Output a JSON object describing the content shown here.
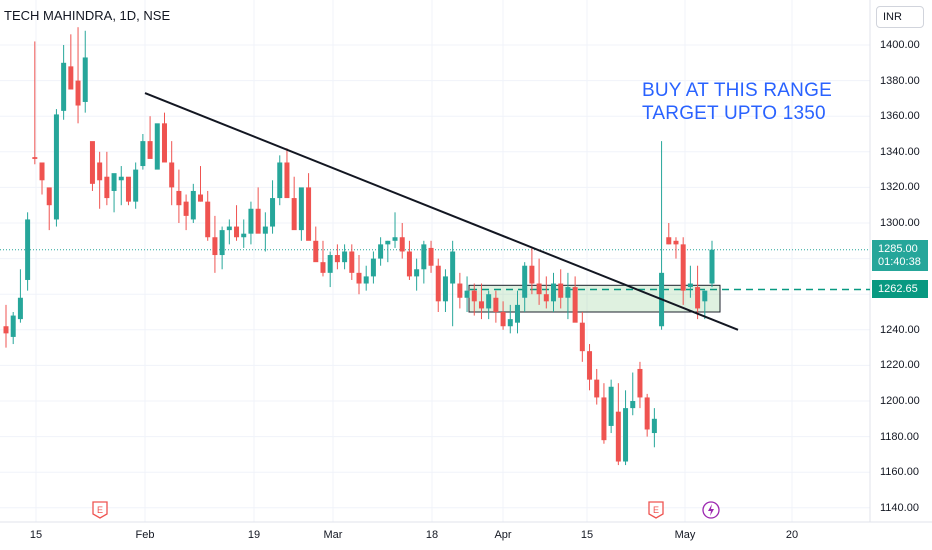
{
  "header": {
    "symbol_title": "TECH MAHINDRA, 1D, NSE",
    "currency": "INR"
  },
  "annotation": {
    "line1": "BUY AT THIS RANGE",
    "line2": "TARGET UPTO 1350"
  },
  "price_axis": {
    "ticks": [
      "1400.00",
      "1380.00",
      "1360.00",
      "1340.00",
      "1320.00",
      "1300.00",
      "1280.00",
      "1260.00",
      "1240.00",
      "1220.00",
      "1200.00",
      "1180.00",
      "1160.00",
      "1140.00"
    ]
  },
  "time_axis": {
    "ticks": [
      "15",
      "Feb",
      "19",
      "Mar",
      "18",
      "Apr",
      "15",
      "May",
      "20"
    ]
  },
  "last_price": {
    "value": "1285.00",
    "countdown": "01:40:38",
    "color": "#26a69a"
  },
  "level_line": {
    "value": "1262.65",
    "color": "#089981"
  },
  "events": {
    "earnings_label": "E",
    "dividend_icon": "lightning-icon"
  },
  "colors": {
    "up": "#26a69a",
    "down": "#ef5350",
    "trendline": "#131722",
    "annotation": "#2962ff",
    "grid": "#f0f3fa"
  },
  "chart_data": {
    "type": "candlestick",
    "title": "TECH MAHINDRA, 1D, NSE",
    "y_range": [
      1130,
      1410
    ],
    "y_unit": "INR",
    "candles_ohlc": [
      [
        1242,
        1254,
        1230,
        1238
      ],
      [
        1236,
        1250,
        1232,
        1248
      ],
      [
        1246,
        1274,
        1244,
        1258
      ],
      [
        1268,
        1306,
        1262,
        1302
      ],
      [
        1337,
        1402,
        1333,
        1336
      ],
      [
        1334,
        1332,
        1316,
        1324
      ],
      [
        1320,
        1316,
        1296,
        1310
      ],
      [
        1302,
        1364,
        1298,
        1361
      ],
      [
        1363,
        1400,
        1358,
        1390
      ],
      [
        1388,
        1406,
        1380,
        1375
      ],
      [
        1380,
        1410,
        1356,
        1366
      ],
      [
        1368,
        1408,
        1362,
        1393
      ],
      [
        1346,
        1342,
        1318,
        1322
      ],
      [
        1334,
        1340,
        1308,
        1324
      ],
      [
        1326,
        1340,
        1310,
        1314
      ],
      [
        1318,
        1326,
        1306,
        1328
      ],
      [
        1324,
        1332,
        1310,
        1326
      ],
      [
        1326,
        1318,
        1310,
        1312
      ],
      [
        1312,
        1334,
        1308,
        1330
      ],
      [
        1332,
        1350,
        1330,
        1346
      ],
      [
        1346,
        1360,
        1338,
        1336
      ],
      [
        1330,
        1346,
        1336,
        1356
      ],
      [
        1356,
        1362,
        1348,
        1334
      ],
      [
        1334,
        1346,
        1310,
        1320
      ],
      [
        1318,
        1330,
        1300,
        1310
      ],
      [
        1312,
        1316,
        1296,
        1304
      ],
      [
        1302,
        1322,
        1300,
        1318
      ],
      [
        1316,
        1332,
        1312,
        1312
      ],
      [
        1312,
        1318,
        1290,
        1292
      ],
      [
        1292,
        1304,
        1272,
        1282
      ],
      [
        1282,
        1298,
        1274,
        1296
      ],
      [
        1296,
        1302,
        1288,
        1298
      ],
      [
        1298,
        1310,
        1290,
        1292
      ],
      [
        1292,
        1302,
        1286,
        1294
      ],
      [
        1294,
        1312,
        1288,
        1308
      ],
      [
        1308,
        1320,
        1298,
        1294
      ],
      [
        1294,
        1306,
        1284,
        1298
      ],
      [
        1298,
        1324,
        1294,
        1314
      ],
      [
        1314,
        1338,
        1310,
        1334
      ],
      [
        1334,
        1342,
        1328,
        1314
      ],
      [
        1314,
        1326,
        1300,
        1296
      ],
      [
        1296,
        1310,
        1290,
        1320
      ],
      [
        1320,
        1328,
        1298,
        1290
      ],
      [
        1290,
        1298,
        1284,
        1278
      ],
      [
        1278,
        1290,
        1270,
        1272
      ],
      [
        1272,
        1284,
        1264,
        1282
      ],
      [
        1282,
        1288,
        1274,
        1278
      ],
      [
        1278,
        1288,
        1274,
        1284
      ],
      [
        1284,
        1288,
        1268,
        1272
      ],
      [
        1272,
        1282,
        1260,
        1266
      ],
      [
        1266,
        1276,
        1262,
        1270
      ],
      [
        1270,
        1284,
        1266,
        1280
      ],
      [
        1280,
        1292,
        1276,
        1288
      ],
      [
        1288,
        1290,
        1278,
        1290
      ],
      [
        1290,
        1306,
        1286,
        1292
      ],
      [
        1292,
        1300,
        1280,
        1284
      ],
      [
        1284,
        1290,
        1268,
        1270
      ],
      [
        1270,
        1280,
        1262,
        1274
      ],
      [
        1274,
        1290,
        1266,
        1288
      ],
      [
        1286,
        1290,
        1272,
        1276
      ],
      [
        1276,
        1280,
        1250,
        1256
      ],
      [
        1256,
        1274,
        1250,
        1270
      ],
      [
        1266,
        1290,
        1242,
        1284
      ],
      [
        1266,
        1272,
        1252,
        1258
      ],
      [
        1258,
        1270,
        1250,
        1262
      ],
      [
        1262,
        1266,
        1248,
        1256
      ],
      [
        1256,
        1266,
        1246,
        1252
      ],
      [
        1252,
        1262,
        1246,
        1260
      ],
      [
        1258,
        1262,
        1244,
        1250
      ],
      [
        1250,
        1256,
        1240,
        1242
      ],
      [
        1242,
        1254,
        1238,
        1246
      ],
      [
        1244,
        1262,
        1238,
        1254
      ],
      [
        1258,
        1278,
        1250,
        1276
      ],
      [
        1276,
        1286,
        1260,
        1266
      ],
      [
        1266,
        1280,
        1254,
        1260
      ],
      [
        1260,
        1270,
        1252,
        1256
      ],
      [
        1256,
        1272,
        1250,
        1266
      ],
      [
        1266,
        1274,
        1252,
        1258
      ],
      [
        1258,
        1272,
        1246,
        1264
      ],
      [
        1264,
        1270,
        1248,
        1244
      ],
      [
        1244,
        1250,
        1222,
        1228
      ],
      [
        1228,
        1232,
        1206,
        1212
      ],
      [
        1212,
        1218,
        1198,
        1202
      ],
      [
        1202,
        1210,
        1176,
        1178
      ],
      [
        1186,
        1212,
        1182,
        1208
      ],
      [
        1194,
        1210,
        1164,
        1166
      ],
      [
        1166,
        1206,
        1164,
        1196
      ],
      [
        1196,
        1216,
        1192,
        1200
      ],
      [
        1218,
        1222,
        1196,
        1202
      ],
      [
        1202,
        1204,
        1180,
        1184
      ],
      [
        1182,
        1196,
        1174,
        1190
      ],
      [
        1242,
        1346,
        1240,
        1272
      ],
      [
        1292,
        1300,
        1288,
        1288
      ],
      [
        1290,
        1292,
        1280,
        1288
      ],
      [
        1288,
        1292,
        1254,
        1262
      ],
      [
        1264,
        1276,
        1258,
        1266
      ],
      [
        1264,
        1276,
        1246,
        1252
      ],
      [
        1256,
        1262,
        1246,
        1262
      ],
      [
        1266,
        1290,
        1264,
        1285
      ]
    ],
    "trendline": {
      "from": [
        "Feb",
        1373
      ],
      "to": [
        "May",
        1240
      ]
    },
    "demand_zone": {
      "top": 1265,
      "bottom": 1250
    },
    "dashed_level": 1262.65,
    "annotations": [
      "BUY AT THIS RANGE",
      "TARGET UPTO 1350"
    ]
  }
}
